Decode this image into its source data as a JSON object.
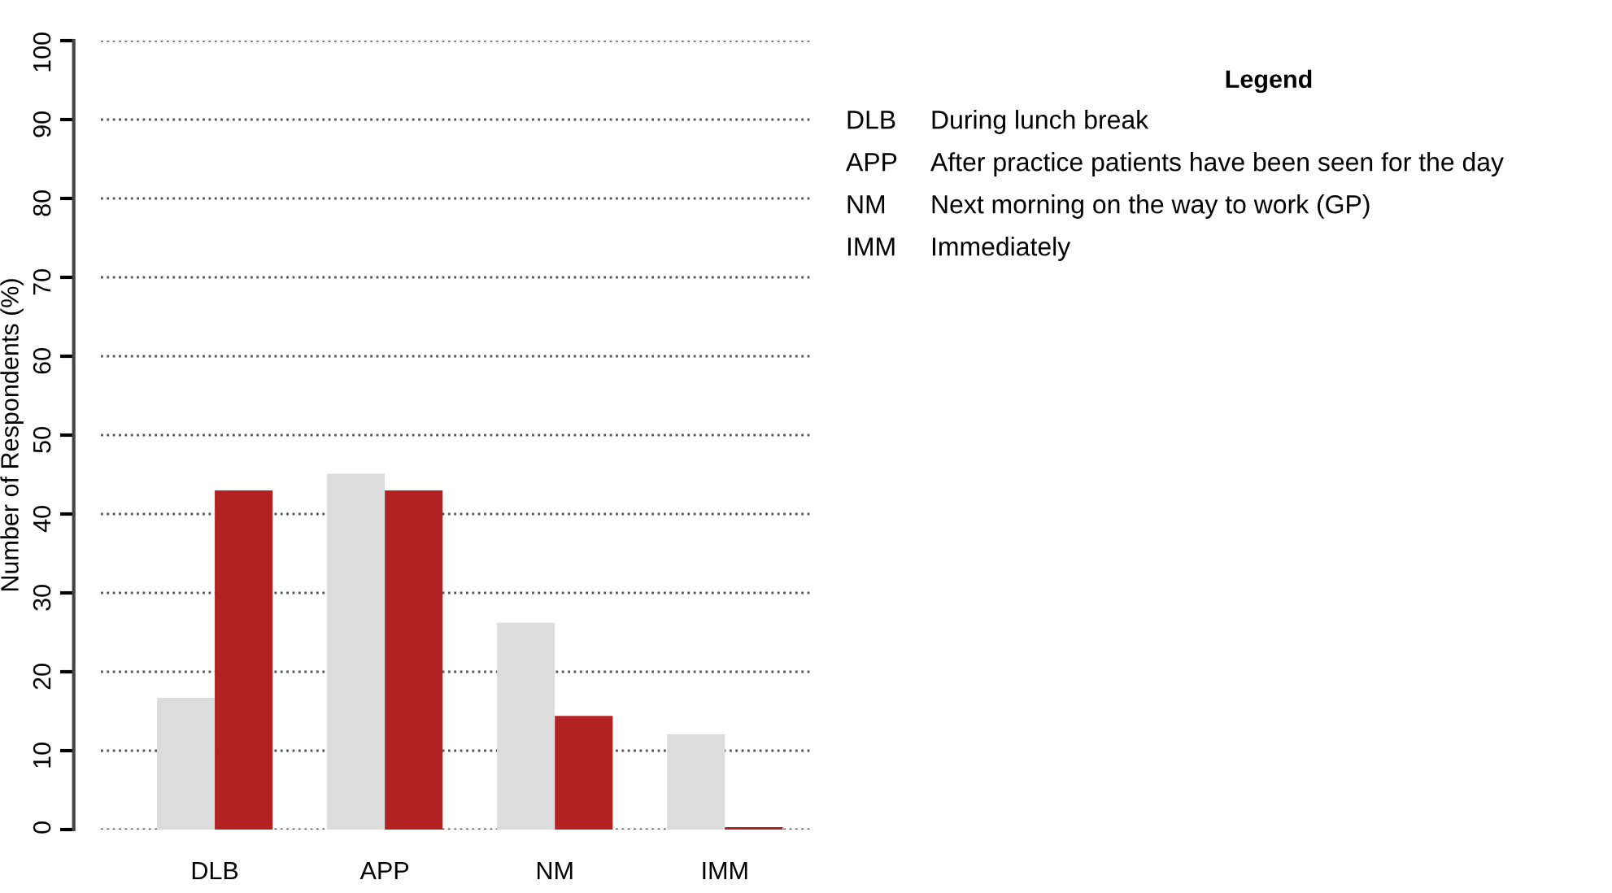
{
  "chart_data": {
    "type": "bar",
    "ylabel": "Number of Respondents (%)",
    "categories": [
      "DLB",
      "APP",
      "NM",
      "IMM"
    ],
    "series": [
      {
        "color": "#dcdcdc",
        "values": [
          16.7,
          45.1,
          26.2,
          12.1
        ]
      },
      {
        "color": "#b22222",
        "values": [
          43.0,
          43.0,
          14.4,
          0.3
        ]
      }
    ],
    "ylim": [
      0,
      100
    ],
    "yticks": [
      0,
      10,
      20,
      30,
      40,
      50,
      60,
      70,
      80,
      90,
      100
    ],
    "grid": "y",
    "line_style": "dotted",
    "annotations": [
      "Legend",
      "DLB",
      "During lunch break",
      "APP",
      "After practice patients have been seen for the day",
      "NM",
      "Next morning on the way to work (GP)",
      "IMM",
      "Immediately"
    ]
  }
}
